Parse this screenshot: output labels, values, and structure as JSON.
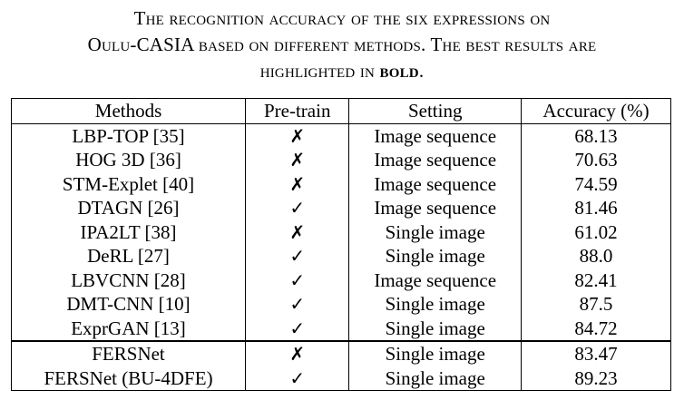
{
  "caption": {
    "line1": "The recognition accuracy of the six expressions on",
    "line2": "Oulu-CASIA based on different methods. The best results are",
    "line3_pre": "highlighted in ",
    "line3_bold": "bold",
    "line3_post": "."
  },
  "table": {
    "headers": [
      "Methods",
      "Pre-train",
      "Setting",
      "Accuracy (%)"
    ],
    "rows": [
      {
        "method": "LBP-TOP [35]",
        "pretrain": "✗",
        "setting": "Image sequence",
        "accuracy": "68.13"
      },
      {
        "method": "HOG 3D [36]",
        "pretrain": "✗",
        "setting": "Image sequence",
        "accuracy": "70.63"
      },
      {
        "method": "STM-Explet [40]",
        "pretrain": "✗",
        "setting": "Image sequence",
        "accuracy": "74.59"
      },
      {
        "method": "DTAGN [26]",
        "pretrain": "✓",
        "setting": "Image sequence",
        "accuracy": "81.46"
      },
      {
        "method": "IPA2LT [38]",
        "pretrain": "✗",
        "setting": "Single image",
        "accuracy": "61.02"
      },
      {
        "method": "DeRL [27]",
        "pretrain": "✓",
        "setting": "Single image",
        "accuracy": "88.0"
      },
      {
        "method": "LBVCNN [28]",
        "pretrain": "✓",
        "setting": "Image sequence",
        "accuracy": "82.41"
      },
      {
        "method": "DMT-CNN [10]",
        "pretrain": "✓",
        "setting": "Single image",
        "accuracy": "87.5"
      },
      {
        "method": "ExprGAN [13]",
        "pretrain": "✓",
        "setting": "Single image",
        "accuracy": "84.72"
      },
      {
        "method": "FERSNet",
        "pretrain": "✗",
        "setting": "Single image",
        "accuracy": "83.47"
      },
      {
        "method": "FERSNet (BU-4DFE)",
        "pretrain": "✓",
        "setting": "Single image",
        "accuracy": "89.23",
        "best": true
      }
    ]
  }
}
